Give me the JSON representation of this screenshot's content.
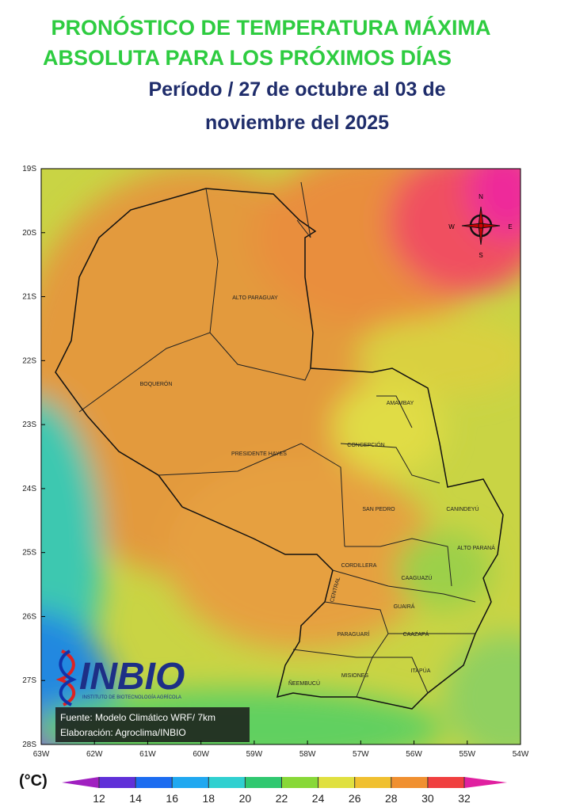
{
  "header": {
    "title_lines": [
      "PRONÓSTICO DE TEMPERATURA MÁXIMA",
      "ABSOLUTA PARA LOS PRÓXIMOS DÍAS"
    ],
    "period_lines": [
      "Período /  27  de octubre al 03 de",
      "noviembre del 2025"
    ]
  },
  "map": {
    "lat_labels": [
      "19S",
      "20S",
      "21S",
      "22S",
      "23S",
      "24S",
      "25S",
      "26S",
      "27S",
      "28S"
    ],
    "lon_labels": [
      "63W",
      "62W",
      "61W",
      "60W",
      "59W",
      "58W",
      "57W",
      "56W",
      "55W",
      "54W"
    ],
    "regions": [
      "ALTO PARAGUAY",
      "BOQUERÓN",
      "PRESIDENTE HAYES",
      "AMAMBAY",
      "CONCEPCIÓN",
      "SAN PEDRO",
      "CANINDEYÚ",
      "ALTO PARANÁ",
      "CORDILLERA",
      "CAAGUAZÚ",
      "CENTRAL",
      "GUAIRÁ",
      "PARAGUARÍ",
      "CAAZAPÁ",
      "MISIONES",
      "ITAPÚA",
      "ÑEEMBUCÚ"
    ],
    "compass": [
      "N",
      "E",
      "S",
      "W"
    ]
  },
  "logo": {
    "name": "INBIO",
    "subtitle": "INSTITUTO DE BIOTECNOLOGÍA AGRÍCOLA"
  },
  "credits": [
    "Fuente: Modelo Climático WRF/ 7km",
    "Elaboración: Agroclima/INBIO"
  ],
  "legend": {
    "unit": "(°C)",
    "ticks": [
      12,
      14,
      16,
      18,
      20,
      22,
      24,
      26,
      28,
      30,
      32
    ]
  }
}
